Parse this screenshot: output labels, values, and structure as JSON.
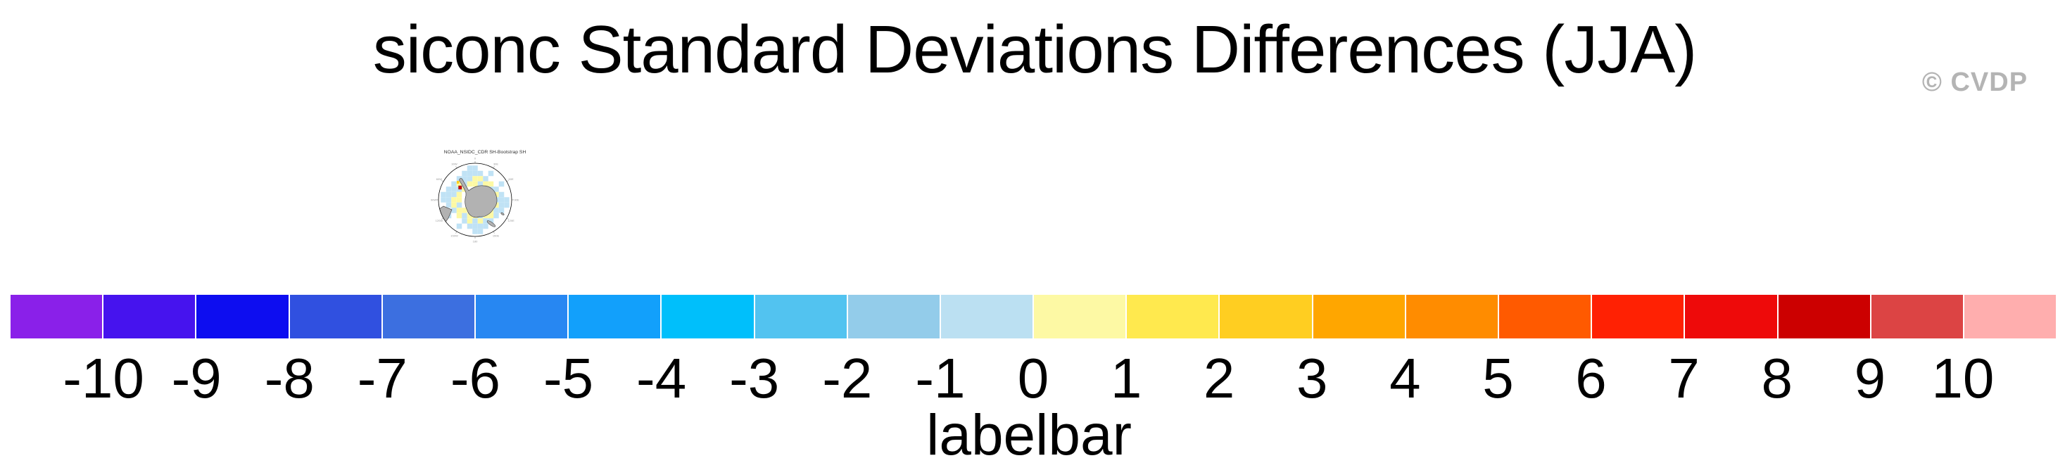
{
  "figure": {
    "title": "siconc Standard Deviations Differences (JJA)",
    "watermark": "© CVDP",
    "background": "#ffffff"
  },
  "minimap": {
    "title": "NOAA_NSIDC_CDR SH-Bootstrap SH",
    "projection": "south-polar-stereographic",
    "meridian_labels": [
      "0",
      "30E",
      "60E",
      "90E",
      "120E",
      "150E",
      "180",
      "150W",
      "120W",
      "90W",
      "60W",
      "30W"
    ],
    "colors": {
      "land": "#b2b2b2",
      "outline": "#4a4a4a",
      "ice_diff_yellow": "#fdf9a4",
      "ice_diff_blue": "#c0e2f5",
      "ice_diff_red": "#cc0000",
      "ice_diff_amber": "#ffce21"
    }
  },
  "chart_data": {
    "type": "colorbar",
    "title": "labelbar",
    "orientation": "horizontal",
    "levels": [
      -10,
      -9,
      -8,
      -7,
      -6,
      -5,
      -4,
      -3,
      -2,
      -1,
      0,
      1,
      2,
      3,
      4,
      5,
      6,
      7,
      8,
      9,
      10
    ],
    "tick_labels": [
      "-10",
      "-9",
      "-8",
      "-7",
      "-6",
      "-5",
      "-4",
      "-3",
      "-2",
      "-1",
      "0",
      "1",
      "2",
      "3",
      "4",
      "5",
      "6",
      "7",
      "8",
      "9",
      "10"
    ],
    "colors": [
      "#8a20e9",
      "#4613ee",
      "#0d0df0",
      "#3050e0",
      "#3c6fe0",
      "#2787f2",
      "#12a0fb",
      "#00bffb",
      "#52c3f0",
      "#93ccea",
      "#bbe0f2",
      "#fdf9a4",
      "#ffe94e",
      "#ffce21",
      "#ffa600",
      "#ff8c00",
      "#ff5a00",
      "#ff2103",
      "#ee0a0a",
      "#cc0000",
      "#dc4444",
      "#ffaeae"
    ]
  }
}
